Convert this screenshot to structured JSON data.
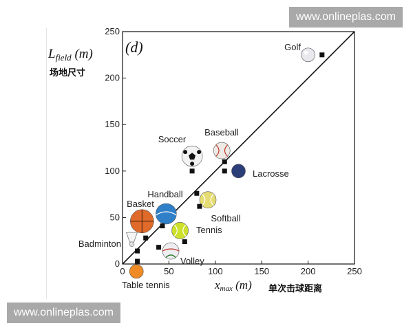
{
  "watermarks": {
    "top": "www.onlineplas.com",
    "bottom": "www.onlineplas.com"
  },
  "chart_data": {
    "type": "scatter",
    "panel_label": "(d)",
    "xlabel": "x_max (m)",
    "xlabel_cn": "单次击球距离",
    "ylabel": "L_field (m)",
    "ylabel_cn": "场地尺寸",
    "xlim": [
      0,
      250
    ],
    "ylim": [
      0,
      250
    ],
    "xticks": [
      0,
      50,
      100,
      150,
      200,
      250
    ],
    "yticks": [
      0,
      50,
      100,
      150,
      200,
      250
    ],
    "grid": false,
    "reference_line": {
      "from": [
        0,
        0
      ],
      "to": [
        250,
        250
      ]
    },
    "points": [
      {
        "name": "Golf",
        "x": 215,
        "y": 225
      },
      {
        "name": "Baseball",
        "x": 110,
        "y": 110
      },
      {
        "name": "Soccer",
        "x": 75,
        "y": 100
      },
      {
        "name": "Lacrosse",
        "x": 110,
        "y": 100
      },
      {
        "name": "Handball",
        "x": 80,
        "y": 76
      },
      {
        "name": "Softball",
        "x": 83,
        "y": 62
      },
      {
        "name": "Basket",
        "x": 43,
        "y": 41
      },
      {
        "name": "Tennis",
        "x": 67,
        "y": 24
      },
      {
        "name": "Badmínton",
        "x": 25,
        "y": 28
      },
      {
        "name": "Volley",
        "x": 39,
        "y": 18
      },
      {
        "name": "Table tennis",
        "x": 16,
        "y": 14
      },
      {
        "name": "Table tennis low",
        "x": 16,
        "y": 3
      }
    ],
    "labels": [
      "Golf",
      "Baseball",
      "Soccer",
      "Lacrosse",
      "Handball",
      "Softball",
      "Basket",
      "Tennis",
      "Badminton",
      "Volley",
      "Table tennis"
    ],
    "balls": [
      {
        "name": "golf-ball",
        "x": 200,
        "y": 225,
        "color": "#e8e8ee"
      },
      {
        "name": "baseball-ball",
        "x": 107,
        "y": 122,
        "color": "#eeeae6"
      },
      {
        "name": "soccer-ball",
        "x": 75,
        "y": 116,
        "color": "#f2f2f2"
      },
      {
        "name": "lacrosse-ball",
        "x": 125,
        "y": 100,
        "color": "#2c3e78"
      },
      {
        "name": "softball-ball",
        "x": 92,
        "y": 69,
        "color": "#e6dc74"
      },
      {
        "name": "handball-ball",
        "x": 47,
        "y": 54,
        "color": "#2f80c8"
      },
      {
        "name": "basketball-ball",
        "x": 21,
        "y": 46,
        "color": "#e06a2a"
      },
      {
        "name": "tennis-ball",
        "x": 62,
        "y": 36,
        "color": "#cde02c"
      },
      {
        "name": "volleyball-ball",
        "x": 52,
        "y": 14,
        "color": "#eeeef2"
      },
      {
        "name": "table-tennis-ball",
        "x": 15,
        "y": -8,
        "color": "#f08a24"
      }
    ]
  }
}
